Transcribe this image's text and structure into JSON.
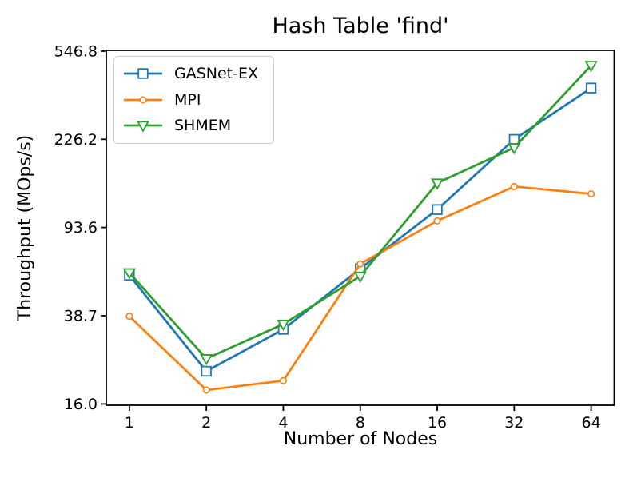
{
  "chart_data": {
    "type": "line",
    "title": "Hash Table 'find'",
    "xlabel": "Number of Nodes",
    "ylabel": "Throughput (MOps/s)",
    "x_scale": "log2",
    "y_scale": "log",
    "grid": false,
    "legend_position": "upper-left",
    "x": [
      1,
      2,
      4,
      8,
      16,
      32,
      64
    ],
    "x_tick_labels": [
      "1",
      "2",
      "4",
      "8",
      "16",
      "32",
      "64"
    ],
    "y_ticks": [
      16.0,
      38.7,
      93.6,
      226.2,
      546.8
    ],
    "y_tick_labels": [
      "16.0",
      "38.7",
      "93.6",
      "226.2",
      "546.8"
    ],
    "xlim_log2": [
      -0.3,
      6.3
    ],
    "ylim": [
      15.8,
      551
    ],
    "axis_color": "#000000",
    "series": [
      {
        "name": "GASNet-EX",
        "color": "#1f77b4",
        "marker": "square",
        "values": [
          58,
          22.2,
          33.8,
          62,
          112,
          226,
          378
        ]
      },
      {
        "name": "MPI",
        "color": "#ff7f0e",
        "marker": "circle",
        "values": [
          38.5,
          18.4,
          20.2,
          65,
          100,
          141,
          131
        ]
      },
      {
        "name": "SHMEM",
        "color": "#2ca02c",
        "marker": "triangle-down",
        "values": [
          59.5,
          25.2,
          35.6,
          57.5,
          146,
          208,
          474
        ]
      }
    ]
  }
}
